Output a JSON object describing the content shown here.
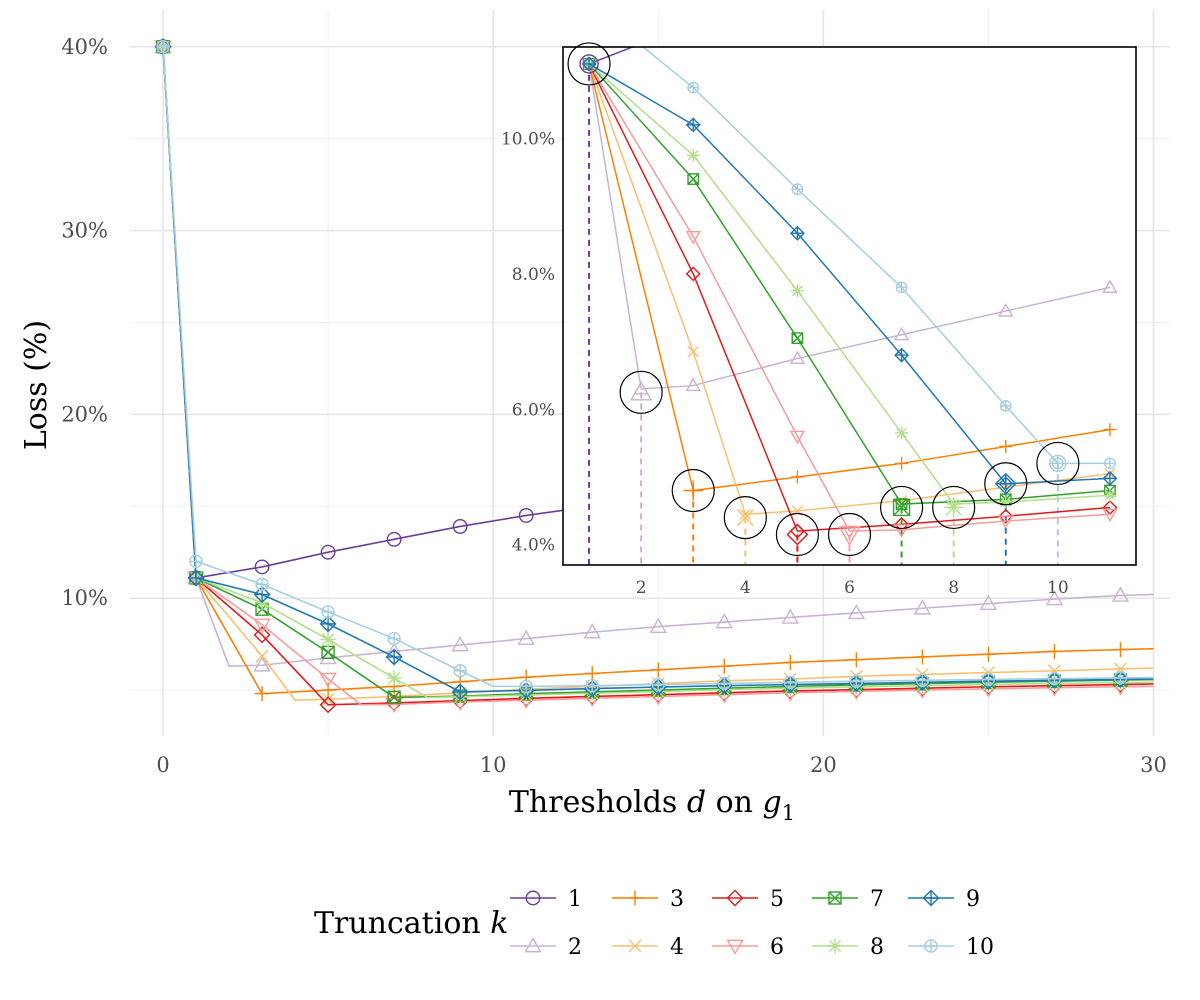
{
  "chart_data": {
    "type": "line",
    "xlabel_parts": [
      "Thresholds ",
      "d",
      " on ",
      "g",
      "1"
    ],
    "ylabel": "Loss (%)",
    "xlim": [
      -1,
      30.5
    ],
    "ylim": [
      2.5,
      42
    ],
    "x_ticks": [
      0,
      10,
      20,
      30
    ],
    "x_tick_labels": [
      "0",
      "10",
      "20",
      "30"
    ],
    "y_ticks": [
      10,
      20,
      30,
      40
    ],
    "y_tick_labels": [
      "10%",
      "20%",
      "30%",
      "40%"
    ],
    "grid": true,
    "legend": {
      "title_parts": [
        "Truncation ",
        "k"
      ],
      "position": "bottom"
    },
    "series": [
      {
        "name": "1",
        "color": "#6a3d9a",
        "marker": "circle",
        "x": [
          0,
          1,
          3,
          5,
          7,
          9,
          11,
          13,
          15,
          17,
          19,
          21,
          23,
          25,
          27,
          29
        ],
        "y": [
          40,
          11.1,
          11.7,
          12.5,
          13.2,
          13.9,
          14.5,
          15.0,
          15.5,
          16.0,
          16.4,
          16.8,
          17.2,
          17.6,
          18.0,
          18.3
        ]
      },
      {
        "name": "2",
        "color": "#cab2d6",
        "marker": "triangle-up",
        "x": [
          0,
          1,
          2,
          3,
          5,
          7,
          9,
          11,
          13,
          15,
          17,
          19,
          21,
          23,
          25,
          27,
          29,
          30
        ],
        "y": [
          40,
          11.1,
          6.3,
          6.35,
          6.75,
          7.1,
          7.45,
          7.8,
          8.15,
          8.45,
          8.7,
          8.95,
          9.2,
          9.45,
          9.7,
          9.95,
          10.15,
          10.2
        ]
      },
      {
        "name": "3",
        "color": "#ff7f00",
        "marker": "plus",
        "x": [
          0,
          1,
          3,
          5,
          7,
          9,
          11,
          13,
          15,
          17,
          19,
          21,
          23,
          25,
          27,
          29,
          30
        ],
        "y": [
          40,
          11.1,
          4.8,
          5.0,
          5.2,
          5.45,
          5.7,
          5.9,
          6.1,
          6.3,
          6.5,
          6.65,
          6.8,
          6.95,
          7.1,
          7.2,
          7.25
        ]
      },
      {
        "name": "4",
        "color": "#fdbf6f",
        "marker": "cross",
        "x": [
          0,
          1,
          3,
          4,
          5,
          7,
          9,
          11,
          13,
          15,
          17,
          19,
          21,
          23,
          25,
          27,
          29,
          30
        ],
        "y": [
          40,
          11.1,
          6.85,
          4.45,
          4.5,
          4.65,
          4.85,
          5.05,
          5.2,
          5.35,
          5.5,
          5.6,
          5.75,
          5.85,
          5.95,
          6.05,
          6.15,
          6.2
        ]
      },
      {
        "name": "5",
        "color": "#e31a1c",
        "marker": "diamond",
        "x": [
          0,
          1,
          3,
          5,
          7,
          9,
          11,
          13,
          15,
          17,
          19,
          21,
          23,
          25,
          27,
          29,
          30
        ],
        "y": [
          40,
          11.1,
          8.0,
          4.2,
          4.3,
          4.42,
          4.55,
          4.65,
          4.75,
          4.85,
          4.95,
          5.02,
          5.1,
          5.18,
          5.24,
          5.3,
          5.33
        ]
      },
      {
        "name": "6",
        "color": "#fb9a99",
        "marker": "triangle-down",
        "x": [
          0,
          1,
          3,
          5,
          6,
          7,
          9,
          11,
          13,
          15,
          17,
          19,
          21,
          23,
          25,
          27,
          29,
          30
        ],
        "y": [
          40,
          11.1,
          8.55,
          5.6,
          4.2,
          4.22,
          4.35,
          4.45,
          4.55,
          4.65,
          4.75,
          4.85,
          4.93,
          5.0,
          5.07,
          5.13,
          5.18,
          5.2
        ]
      },
      {
        "name": "7",
        "color": "#33a02c",
        "marker": "square-cross",
        "x": [
          0,
          1,
          3,
          5,
          7,
          9,
          11,
          13,
          15,
          17,
          19,
          21,
          23,
          25,
          27,
          29,
          30
        ],
        "y": [
          40,
          11.1,
          9.4,
          7.05,
          4.6,
          4.67,
          4.8,
          4.9,
          5.0,
          5.1,
          5.2,
          5.28,
          5.35,
          5.42,
          5.48,
          5.54,
          5.57
        ]
      },
      {
        "name": "8",
        "color": "#b2df8a",
        "marker": "asterisk",
        "x": [
          0,
          1,
          3,
          5,
          7,
          8,
          9,
          11,
          13,
          15,
          17,
          19,
          21,
          23,
          25,
          27,
          29,
          30
        ],
        "y": [
          40,
          11.1,
          9.75,
          7.75,
          5.65,
          4.6,
          4.63,
          4.73,
          4.82,
          4.92,
          5.02,
          5.1,
          5.17,
          5.24,
          5.3,
          5.36,
          5.4,
          5.42
        ]
      },
      {
        "name": "9",
        "color": "#1f78b4",
        "marker": "diamond-plus",
        "x": [
          0,
          1,
          3,
          5,
          7,
          9,
          11,
          13,
          15,
          17,
          19,
          21,
          23,
          25,
          27,
          29,
          30
        ],
        "y": [
          40,
          11.1,
          10.2,
          8.6,
          6.8,
          4.9,
          4.98,
          5.08,
          5.16,
          5.24,
          5.3,
          5.36,
          5.42,
          5.48,
          5.53,
          5.58,
          5.6
        ]
      },
      {
        "name": "10",
        "color": "#a6cee3",
        "marker": "circle-plus",
        "x": [
          0,
          1,
          3,
          5,
          7,
          9,
          10,
          11,
          13,
          15,
          17,
          19,
          21,
          23,
          25,
          27,
          29,
          30
        ],
        "y": [
          40,
          12.0,
          10.75,
          9.25,
          7.8,
          6.05,
          5.2,
          5.2,
          5.24,
          5.3,
          5.36,
          5.42,
          5.48,
          5.53,
          5.58,
          5.62,
          5.66,
          5.68
        ]
      }
    ],
    "inset": {
      "xlim": [
        0.5,
        11.5
      ],
      "ylim": [
        3.7,
        11.35
      ],
      "x_ticks": [
        2,
        4,
        6,
        8,
        10
      ],
      "x_tick_labels": [
        "2",
        "4",
        "6",
        "8",
        "10"
      ],
      "y_ticks": [
        4,
        6,
        8,
        10
      ],
      "y_tick_labels": [
        "4.0%",
        "6.0%",
        "8.0%",
        "10.0%"
      ],
      "x_max_data": 11.5,
      "highlight_minima": [
        {
          "series": "1",
          "x": 1,
          "y": 11.1
        },
        {
          "series": "2",
          "x": 2,
          "y": 6.25
        },
        {
          "series": "3",
          "x": 3,
          "y": 4.8
        },
        {
          "series": "4",
          "x": 4,
          "y": 4.4
        },
        {
          "series": "5",
          "x": 5,
          "y": 4.15
        },
        {
          "series": "6",
          "x": 6,
          "y": 4.15
        },
        {
          "series": "7",
          "x": 7,
          "y": 4.55
        },
        {
          "series": "8",
          "x": 8,
          "y": 4.55
        },
        {
          "series": "9",
          "x": 9,
          "y": 4.9
        },
        {
          "series": "10",
          "x": 10,
          "y": 5.2
        }
      ]
    }
  }
}
